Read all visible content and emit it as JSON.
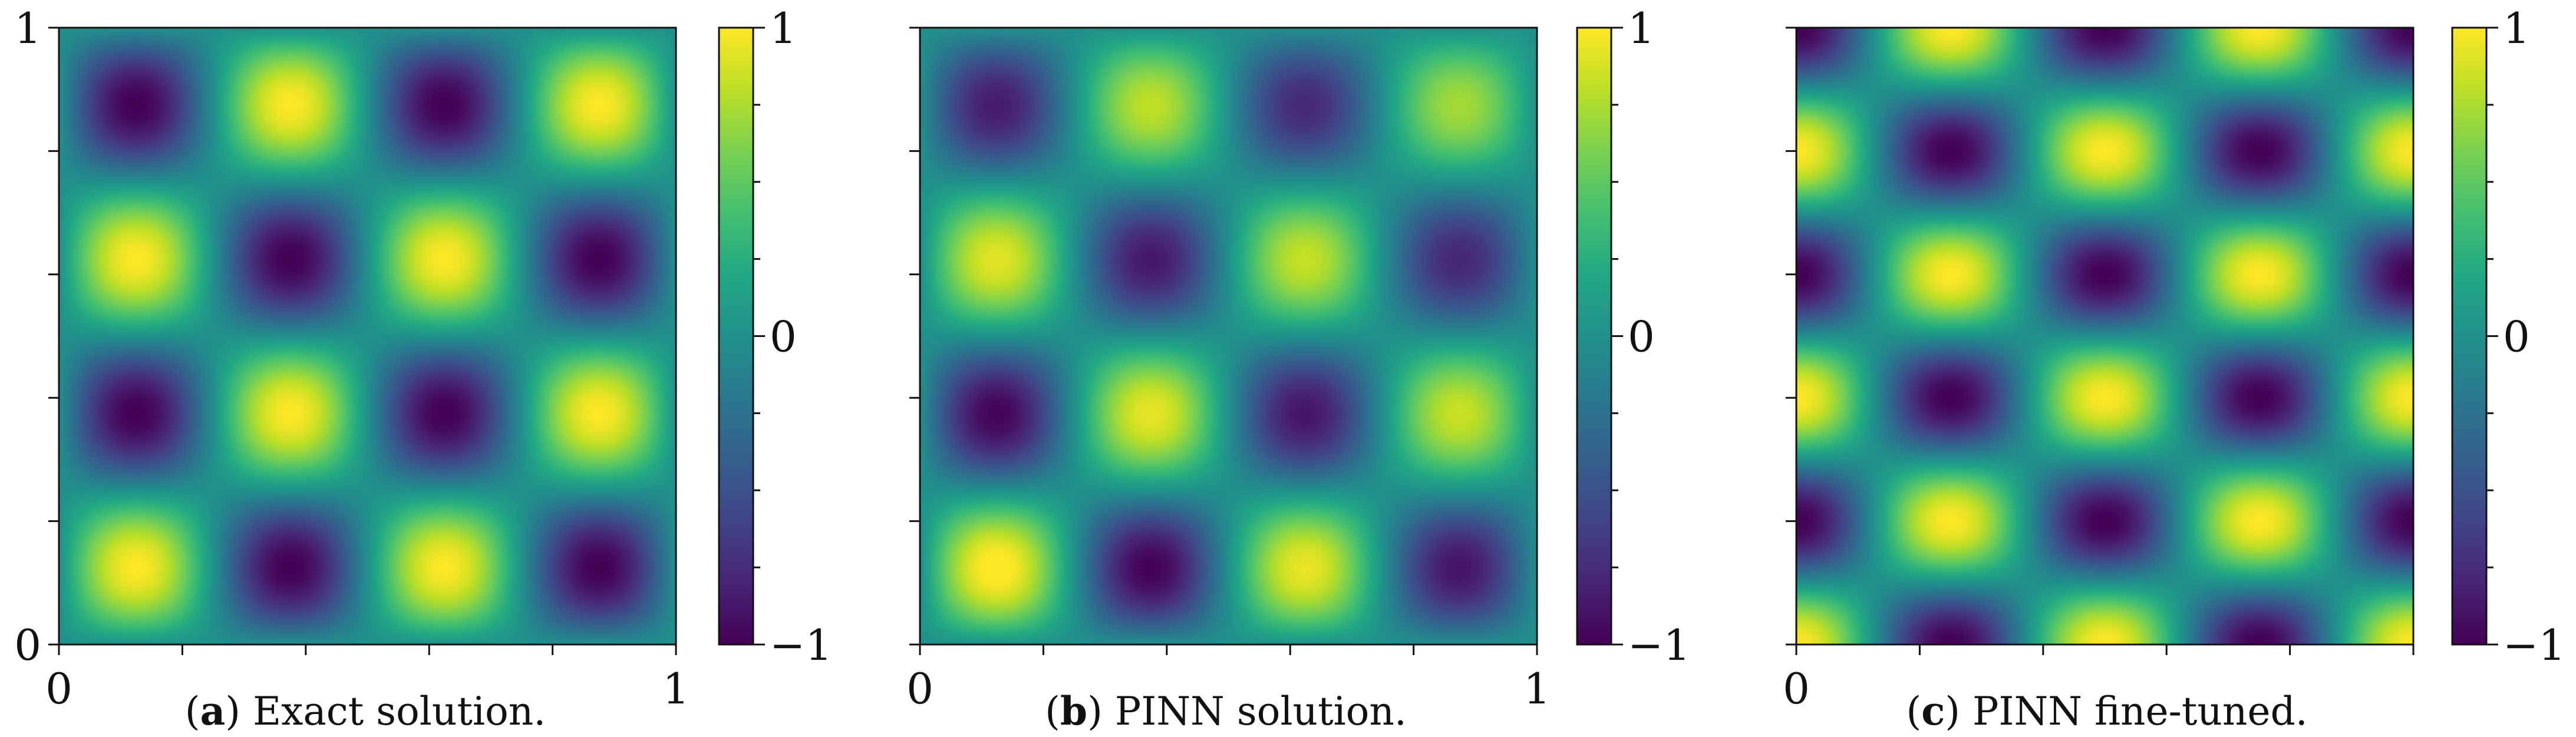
{
  "chart_data": [
    {
      "type": "heatmap",
      "caption": {
        "label": "a",
        "text": "Exact solution."
      },
      "field": {
        "function": "sin(a*pi*x)*sin(b*pi*y)",
        "a": 4,
        "b": 4,
        "phase_x": 0,
        "phase_y": 0,
        "amp_x": [
          1,
          1
        ],
        "amp_y": [
          1,
          1
        ]
      },
      "xlim": [
        0,
        1
      ],
      "ylim": [
        0,
        1
      ],
      "x_tick_labels": [
        "0",
        "1"
      ],
      "y_tick_labels": [
        "0",
        "1"
      ],
      "colorbar": {
        "range": [
          -1,
          1
        ],
        "tick_labels": [
          "−1",
          "0",
          "1"
        ],
        "colormap": "viridis"
      }
    },
    {
      "type": "heatmap",
      "caption": {
        "label": "b",
        "text": "PINN solution."
      },
      "field": {
        "function": "sin(a*pi*x)*sin(b*pi*y)",
        "a": 4,
        "b": 4,
        "phase_x": 0,
        "phase_y": 0,
        "amp_x": [
          1.05,
          0.85
        ],
        "amp_y": [
          1.05,
          0.8
        ]
      },
      "xlim": [
        0,
        1
      ],
      "ylim": [
        0,
        1
      ],
      "x_tick_labels": [
        "0",
        "1"
      ],
      "y_tick_labels": [],
      "colorbar": {
        "range": [
          -1,
          1
        ],
        "tick_labels": [
          "−1",
          "0",
          "1"
        ],
        "colormap": "viridis"
      }
    },
    {
      "type": "heatmap",
      "caption": {
        "label": "c",
        "text": "PINN fine-tuned."
      },
      "field": {
        "function": "cos(a*pi*x)*cos(b*pi*y)",
        "a": 4,
        "b": 5,
        "phase_x": 0,
        "phase_y": 0,
        "amp_x": [
          1,
          1
        ],
        "amp_y": [
          1,
          1
        ]
      },
      "xlim": [
        0,
        1
      ],
      "ylim": [
        0,
        1
      ],
      "x_tick_labels": [
        "0"
      ],
      "y_tick_labels": [],
      "colorbar": {
        "range": [
          -1,
          1
        ],
        "tick_labels": [
          "−1",
          "0",
          "1"
        ],
        "colormap": "viridis"
      }
    }
  ]
}
